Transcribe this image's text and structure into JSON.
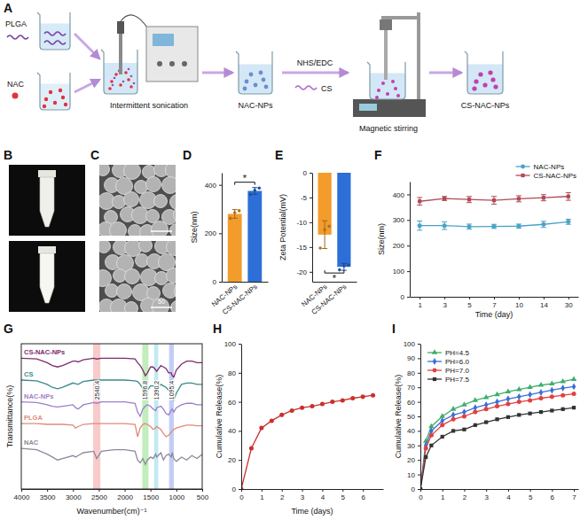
{
  "diagram": {
    "panel": "A",
    "labels": {
      "plga": "PLGA",
      "nac": "NAC",
      "sonication": "Intermittent sonication",
      "nac_nps": "NAC-NPs",
      "reagents": "NHS/EDC",
      "cs": "CS",
      "stirring": "Magnetic stirring",
      "product": "CS-NAC-NPs"
    }
  },
  "images": {
    "photos_panel": "B",
    "sem_panel": "C",
    "sem_scale_label": "50"
  },
  "chart_data": [
    {
      "panel": "D",
      "type": "bar",
      "categories": [
        "NAC-NPs",
        "CS-NAC-NPs"
      ],
      "values": [
        280,
        375
      ],
      "errors": [
        18,
        14
      ],
      "points": [
        [
          262,
          285,
          293
        ],
        [
          360,
          378,
          387
        ]
      ],
      "colors": [
        "#f39c2b",
        "#2d6fd6"
      ],
      "y_label": "Size(nm)",
      "ylim": [
        0,
        450
      ],
      "yticks": [
        0,
        200,
        400
      ],
      "annotations": [
        {
          "text": "*"
        }
      ]
    },
    {
      "panel": "E",
      "type": "bar",
      "categories": [
        "NAC-NPs",
        "CS-NAC-NPs"
      ],
      "values": [
        -12.5,
        -19
      ],
      "errors": [
        2.8,
        0.7
      ],
      "points": [
        [
          -15.2,
          -11.5,
          -10.8
        ],
        [
          -19.6,
          -18.8,
          -18.6
        ]
      ],
      "colors": [
        "#f39c2b",
        "#2d6fd6"
      ],
      "y_label": "Zeta Potential(mV)",
      "ylim": [
        -22,
        0
      ],
      "yticks": [
        -20,
        -15,
        -10,
        -5,
        0
      ],
      "annotations": [
        {
          "text": "*"
        }
      ]
    },
    {
      "panel": "F",
      "type": "line",
      "categories": [
        1,
        3,
        5,
        7,
        10,
        14,
        30
      ],
      "x_label": "Time (day)",
      "y_label": "Size(nm)",
      "ylim": [
        0,
        450
      ],
      "yticks": [
        0,
        100,
        200,
        300,
        400
      ],
      "legend": "upper right",
      "series": [
        {
          "name": "NAC-NPs",
          "color": "#4aa3c8",
          "marker": "circle",
          "values": [
            278,
            278,
            274,
            275,
            276,
            283,
            293
          ],
          "errors": [
            18,
            15,
            10,
            8,
            8,
            12,
            10
          ]
        },
        {
          "name": "CS-NAC-NPs",
          "color": "#b04a55",
          "marker": "square",
          "values": [
            373,
            384,
            380,
            377,
            383,
            387,
            392
          ],
          "errors": [
            15,
            8,
            12,
            15,
            12,
            12,
            15
          ]
        }
      ]
    },
    {
      "panel": "G",
      "type": "line",
      "x": [
        4000,
        3700,
        3500,
        3400,
        3300,
        3200,
        3000,
        2950,
        2900,
        2800,
        2600,
        2540,
        2450,
        2200,
        2000,
        1800,
        1750,
        1700,
        1650,
        1600,
        1560,
        1500,
        1450,
        1400,
        1380,
        1300,
        1250,
        1200,
        1150,
        1100,
        1080,
        1050,
        1000,
        900,
        800,
        700,
        600,
        500
      ],
      "xlim": [
        4000,
        500
      ],
      "xticks": [
        4000,
        3500,
        3000,
        2500,
        2000,
        1500,
        1000,
        500
      ],
      "ylim": [
        0,
        100
      ],
      "tick_labels": "x",
      "x_label": "Wavenumber(cm)⁻¹",
      "y_label": "Transmittance(%)",
      "bands": [
        {
          "x0": 2610,
          "x1": 2470,
          "label": "2540.4",
          "color": "#f5b5b5"
        },
        {
          "x0": 1660,
          "x1": 1540,
          "label": "1596.8",
          "color": "#a8e6a0"
        },
        {
          "x0": 1430,
          "x1": 1350,
          "label": "1390.2",
          "color": "#a8e0f0"
        },
        {
          "x0": 1140,
          "x1": 1050,
          "label": "1095.4",
          "color": "#a9b8f0"
        }
      ],
      "series": [
        {
          "name": "CS-NAC-NPs",
          "color": "#7b2d6b",
          "values": [
            90,
            89.5,
            87,
            85,
            84,
            85,
            88,
            88,
            87.5,
            89,
            90,
            89.5,
            90,
            90,
            90,
            89.5,
            87,
            85,
            82,
            78,
            80,
            84,
            84,
            82,
            81,
            85,
            84,
            83,
            80,
            80,
            78,
            77,
            82,
            86,
            88,
            88,
            87,
            87
          ]
        },
        {
          "name": "CS",
          "color": "#3a8a8c",
          "values": [
            75,
            74.5,
            72,
            70,
            69,
            70,
            73,
            72.5,
            72,
            74,
            75,
            75,
            75,
            75,
            75,
            74.5,
            74,
            72,
            69,
            66,
            68,
            71,
            71,
            70,
            69,
            72,
            71,
            70,
            68,
            65,
            62,
            61,
            66,
            72,
            73,
            73,
            72,
            72
          ]
        },
        {
          "name": "NAC-NPs",
          "color": "#9b7fc9",
          "values": [
            60,
            59.5,
            58,
            57,
            56.5,
            57,
            58,
            56,
            55,
            58,
            59.5,
            59,
            60,
            60,
            60,
            59,
            53,
            50,
            55,
            57,
            58,
            57,
            55,
            54,
            56,
            57,
            55,
            52,
            51,
            54,
            55,
            53,
            56,
            58,
            59,
            59,
            58,
            58
          ]
        },
        {
          "name": "PLGA",
          "color": "#e08a7a",
          "values": [
            45,
            45,
            44.5,
            44.5,
            44.5,
            44.5,
            44,
            42,
            43,
            44.5,
            45,
            45,
            45,
            45,
            45,
            44.5,
            36,
            42,
            44.5,
            45,
            44.5,
            43,
            41,
            42,
            43,
            41,
            38,
            36,
            37,
            39,
            40,
            41,
            42,
            43,
            44,
            44,
            43.5,
            43.5
          ]
        },
        {
          "name": "NAC",
          "color": "#8a8a9a",
          "values": [
            28,
            27,
            24,
            22,
            20,
            21,
            23,
            22,
            23,
            25,
            26,
            21,
            26,
            27,
            27,
            26,
            20,
            18,
            21,
            17,
            20,
            22,
            21,
            24,
            22,
            25,
            20,
            23,
            24,
            22,
            25,
            21,
            19,
            22,
            20,
            23,
            21,
            24
          ]
        }
      ]
    },
    {
      "panel": "H",
      "type": "line",
      "x": [
        0,
        0.5,
        1,
        1.5,
        2,
        2.5,
        3,
        3.5,
        4,
        4.5,
        5,
        5.5,
        6,
        6.5
      ],
      "values": [
        0,
        28,
        42,
        47,
        51,
        54,
        56,
        57,
        58.5,
        60,
        61,
        62.5,
        63.5,
        64.5
      ],
      "color": "#c9302c",
      "marker": "circle",
      "xlim": [
        0,
        7
      ],
      "xticks": [
        0,
        1,
        2,
        3,
        4,
        5,
        6
      ],
      "ylim": [
        0,
        100
      ],
      "yticks": [
        0,
        20,
        40,
        60,
        80,
        100
      ],
      "x_label": "Time (days)",
      "y_label": "Cumulative Release(%)"
    },
    {
      "panel": "I",
      "type": "line",
      "x": [
        0,
        0.25,
        0.5,
        1,
        1.5,
        2,
        2.5,
        3,
        3.5,
        4,
        4.5,
        5,
        5.5,
        6,
        6.5,
        7
      ],
      "xlim": [
        0,
        7.2
      ],
      "xticks": [
        0,
        1,
        2,
        3,
        4,
        5,
        6,
        7
      ],
      "ylim": [
        0,
        100
      ],
      "yticks": [
        0,
        10,
        20,
        30,
        40,
        50,
        60,
        70,
        80,
        90,
        100
      ],
      "y_label": "Cumulative Release(%)",
      "legend": "upper left",
      "series": [
        {
          "name": "PH=4.5",
          "color": "#3fae6a",
          "marker": "triangle",
          "values": [
            0,
            33,
            43,
            50,
            55,
            58,
            61,
            63,
            65,
            67,
            68.5,
            70,
            71.5,
            72.5,
            74,
            75.5
          ]
        },
        {
          "name": "PH=6.0",
          "color": "#3b6fd8",
          "marker": "diamond",
          "values": [
            0,
            30,
            40,
            47,
            51,
            53,
            56,
            58,
            60,
            62,
            63.5,
            65,
            66.5,
            68,
            69.5,
            70.5
          ]
        },
        {
          "name": "PH=7.0",
          "color": "#e0413f",
          "marker": "circle",
          "values": [
            0,
            28,
            37,
            44,
            48,
            50,
            53,
            55,
            57,
            58.5,
            60,
            61,
            62.5,
            63.5,
            64.5,
            65.5
          ]
        },
        {
          "name": "PH=7.5",
          "color": "#333333",
          "marker": "square",
          "values": [
            0,
            22,
            30,
            36,
            40,
            41,
            44,
            46,
            48,
            49.5,
            51,
            52,
            53,
            54,
            55,
            56
          ]
        }
      ]
    }
  ]
}
